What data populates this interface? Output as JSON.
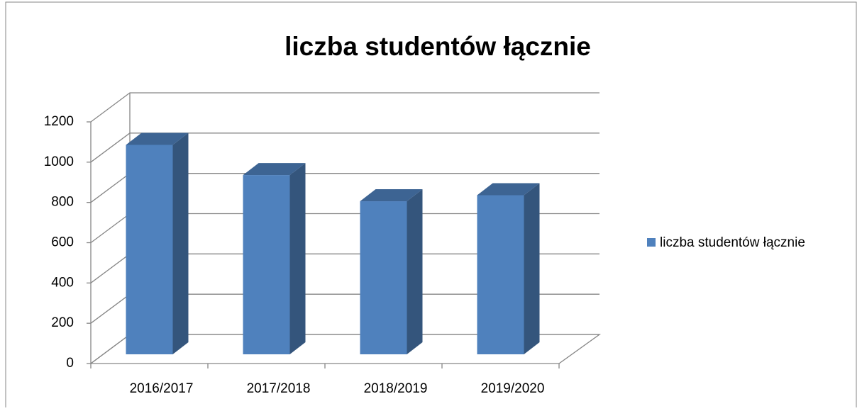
{
  "chart_data": {
    "type": "bar3d",
    "title": "liczba studentów łącznie",
    "categories": [
      "2016/2017",
      "2017/2018",
      "2018/2019",
      "2019/2020"
    ],
    "series": [
      {
        "name": "liczba studentów łącznie",
        "color": "#4f81bd",
        "values": [
          1040,
          890,
          760,
          790
        ]
      }
    ],
    "ylim": [
      0,
      1200
    ],
    "yticks": [
      0,
      200,
      400,
      600,
      800,
      1000,
      1200
    ],
    "grid": true,
    "legend": "right"
  }
}
